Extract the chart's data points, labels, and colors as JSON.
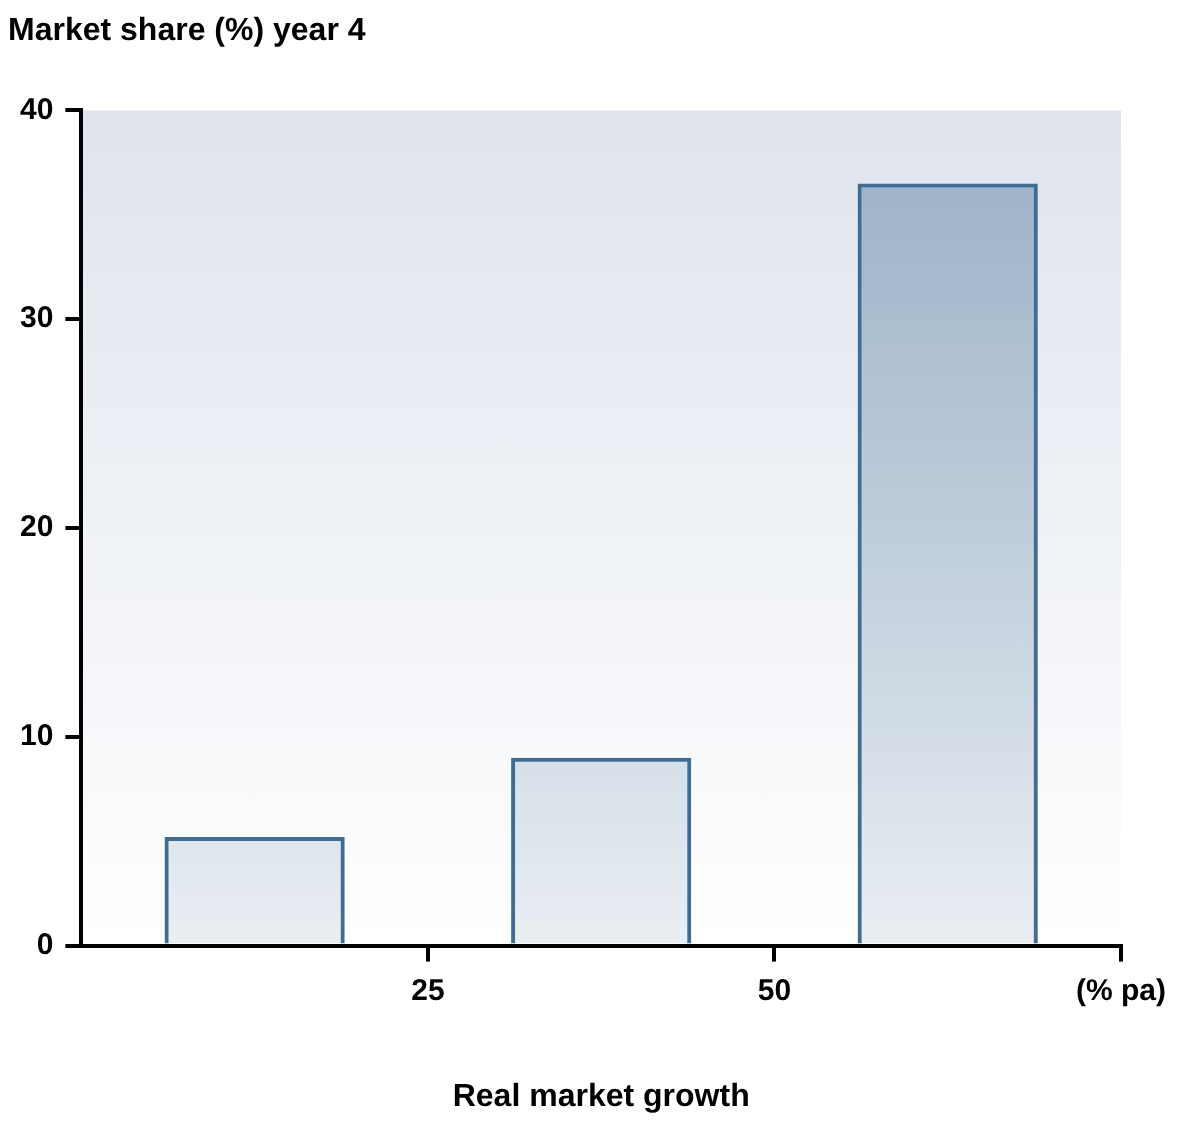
{
  "chart_data": {
    "type": "bar",
    "ylabel": "Market share (%) year 4",
    "xlabel": "Real market growth",
    "x": [
      12.5,
      37.5,
      62.5
    ],
    "values": [
      5.2,
      9,
      36.5
    ],
    "color": "#3f6c93",
    "xlim": [
      0,
      75
    ],
    "xticks": [
      25,
      50,
      {
        "value": 75,
        "label": "(% pa)"
      }
    ],
    "ylim": [
      0,
      40
    ],
    "yticks": [
      0,
      10,
      20,
      30,
      40
    ],
    "grid": false,
    "legend": false
  }
}
